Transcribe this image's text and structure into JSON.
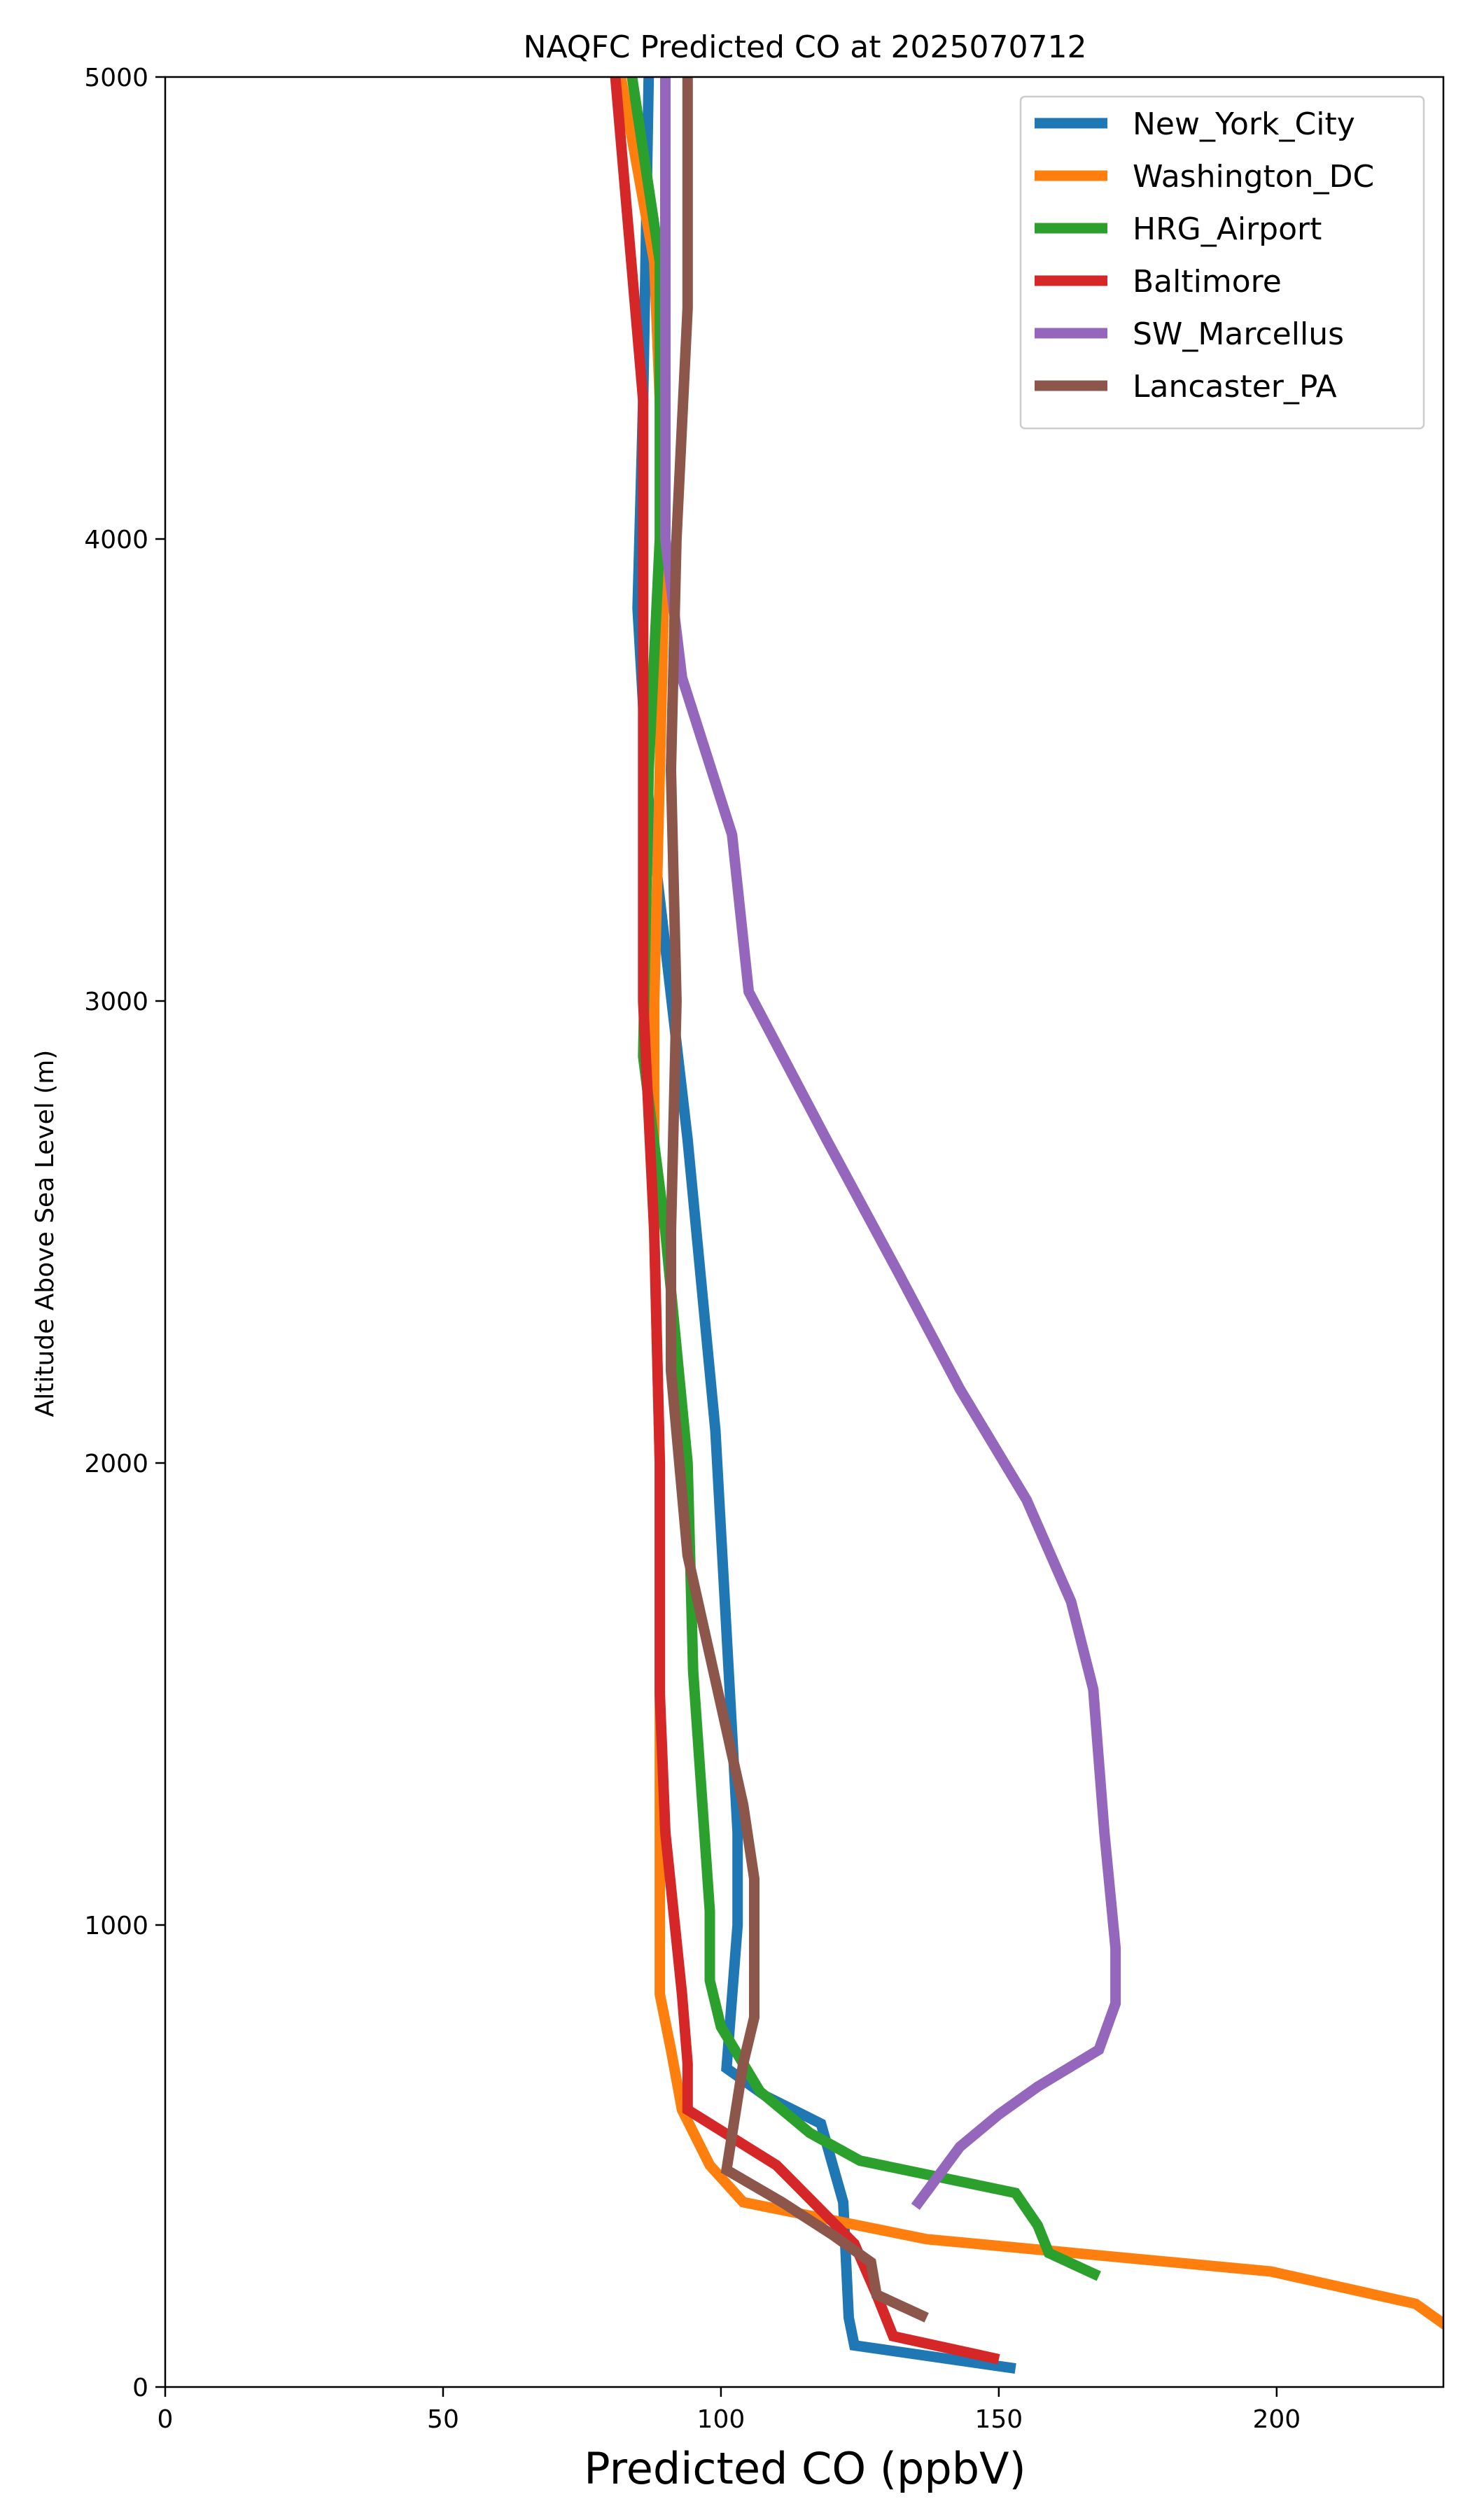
{
  "chart_data": {
    "type": "line",
    "title": "NAQFC Predicted CO at 2025070712",
    "xlabel": "Predicted CO (ppbV)",
    "ylabel": "Altitude Above Sea Level (m)",
    "xlim": [
      0,
      230
    ],
    "ylim": [
      0,
      5000
    ],
    "x_ticks": [
      0,
      50,
      100,
      150,
      200
    ],
    "y_ticks": [
      0,
      1000,
      2000,
      3000,
      4000,
      5000
    ],
    "grid": false,
    "legend_position": "top-right",
    "series": [
      {
        "name": "New_York_City",
        "color": "#1f77b4",
        "points": [
          [
            153,
            40
          ],
          [
            124,
            90
          ],
          [
            123,
            150
          ],
          [
            122,
            400
          ],
          [
            118,
            570
          ],
          [
            108,
            630
          ],
          [
            101,
            690
          ],
          [
            103,
            1000
          ],
          [
            103,
            1200
          ],
          [
            99,
            2070
          ],
          [
            94,
            2700
          ],
          [
            87,
            3430
          ],
          [
            85,
            3850
          ],
          [
            86,
            4300
          ],
          [
            87,
            5000
          ]
        ]
      },
      {
        "name": "Washington_DC",
        "color": "#ff7f0e",
        "points": [
          [
            232,
            120
          ],
          [
            225,
            180
          ],
          [
            199,
            250
          ],
          [
            137,
            320
          ],
          [
            104,
            400
          ],
          [
            98,
            480
          ],
          [
            93,
            600
          ],
          [
            91,
            730
          ],
          [
            89,
            850
          ],
          [
            89,
            1000
          ],
          [
            89,
            1500
          ],
          [
            89,
            2000
          ],
          [
            88,
            2500
          ],
          [
            88,
            3000
          ],
          [
            89,
            3500
          ],
          [
            90,
            4000
          ],
          [
            88,
            4600
          ],
          [
            82,
            5000
          ]
        ]
      },
      {
        "name": "HRG_Airport",
        "color": "#2ca02c",
        "points": [
          [
            168,
            240
          ],
          [
            159,
            290
          ],
          [
            157,
            350
          ],
          [
            153,
            420
          ],
          [
            125,
            490
          ],
          [
            116,
            550
          ],
          [
            107,
            640
          ],
          [
            100,
            780
          ],
          [
            98,
            880
          ],
          [
            98,
            1030
          ],
          [
            95,
            1550
          ],
          [
            94,
            2000
          ],
          [
            90,
            2500
          ],
          [
            86,
            2880
          ],
          [
            87,
            3500
          ],
          [
            89,
            4000
          ],
          [
            89,
            4600
          ],
          [
            84,
            5000
          ]
        ]
      },
      {
        "name": "Baltimore",
        "color": "#d62728",
        "points": [
          [
            150,
            60
          ],
          [
            131,
            110
          ],
          [
            128,
            200
          ],
          [
            124,
            310
          ],
          [
            110,
            480
          ],
          [
            94,
            600
          ],
          [
            94,
            700
          ],
          [
            93,
            850
          ],
          [
            90,
            1200
          ],
          [
            89,
            1500
          ],
          [
            89,
            2000
          ],
          [
            88,
            2500
          ],
          [
            86,
            3000
          ],
          [
            86,
            3500
          ],
          [
            86,
            4000
          ],
          [
            86,
            4300
          ],
          [
            81,
            5000
          ]
        ]
      },
      {
        "name": "SW_Marcellus",
        "color": "#9467bd",
        "points": [
          [
            135,
            390
          ],
          [
            143,
            520
          ],
          [
            150,
            590
          ],
          [
            157,
            650
          ],
          [
            168,
            730
          ],
          [
            171,
            830
          ],
          [
            171,
            950
          ],
          [
            169,
            1200
          ],
          [
            167,
            1510
          ],
          [
            163,
            1700
          ],
          [
            155,
            1920
          ],
          [
            143,
            2160
          ],
          [
            132,
            2410
          ],
          [
            119,
            2700
          ],
          [
            105,
            3020
          ],
          [
            102,
            3360
          ],
          [
            93,
            3700
          ],
          [
            90,
            4000
          ],
          [
            90,
            5000
          ]
        ]
      },
      {
        "name": "Lancaster_PA",
        "color": "#8c564b",
        "points": [
          [
            137,
            150
          ],
          [
            128,
            200
          ],
          [
            127,
            270
          ],
          [
            120,
            330
          ],
          [
            111,
            400
          ],
          [
            101,
            470
          ],
          [
            104,
            700
          ],
          [
            106,
            800
          ],
          [
            106,
            950
          ],
          [
            106,
            1100
          ],
          [
            104,
            1260
          ],
          [
            99,
            1530
          ],
          [
            94,
            1800
          ],
          [
            91,
            2200
          ],
          [
            91,
            2500
          ],
          [
            92,
            3000
          ],
          [
            91,
            3500
          ],
          [
            92,
            4000
          ],
          [
            94,
            4500
          ],
          [
            94,
            5000
          ]
        ]
      }
    ]
  }
}
